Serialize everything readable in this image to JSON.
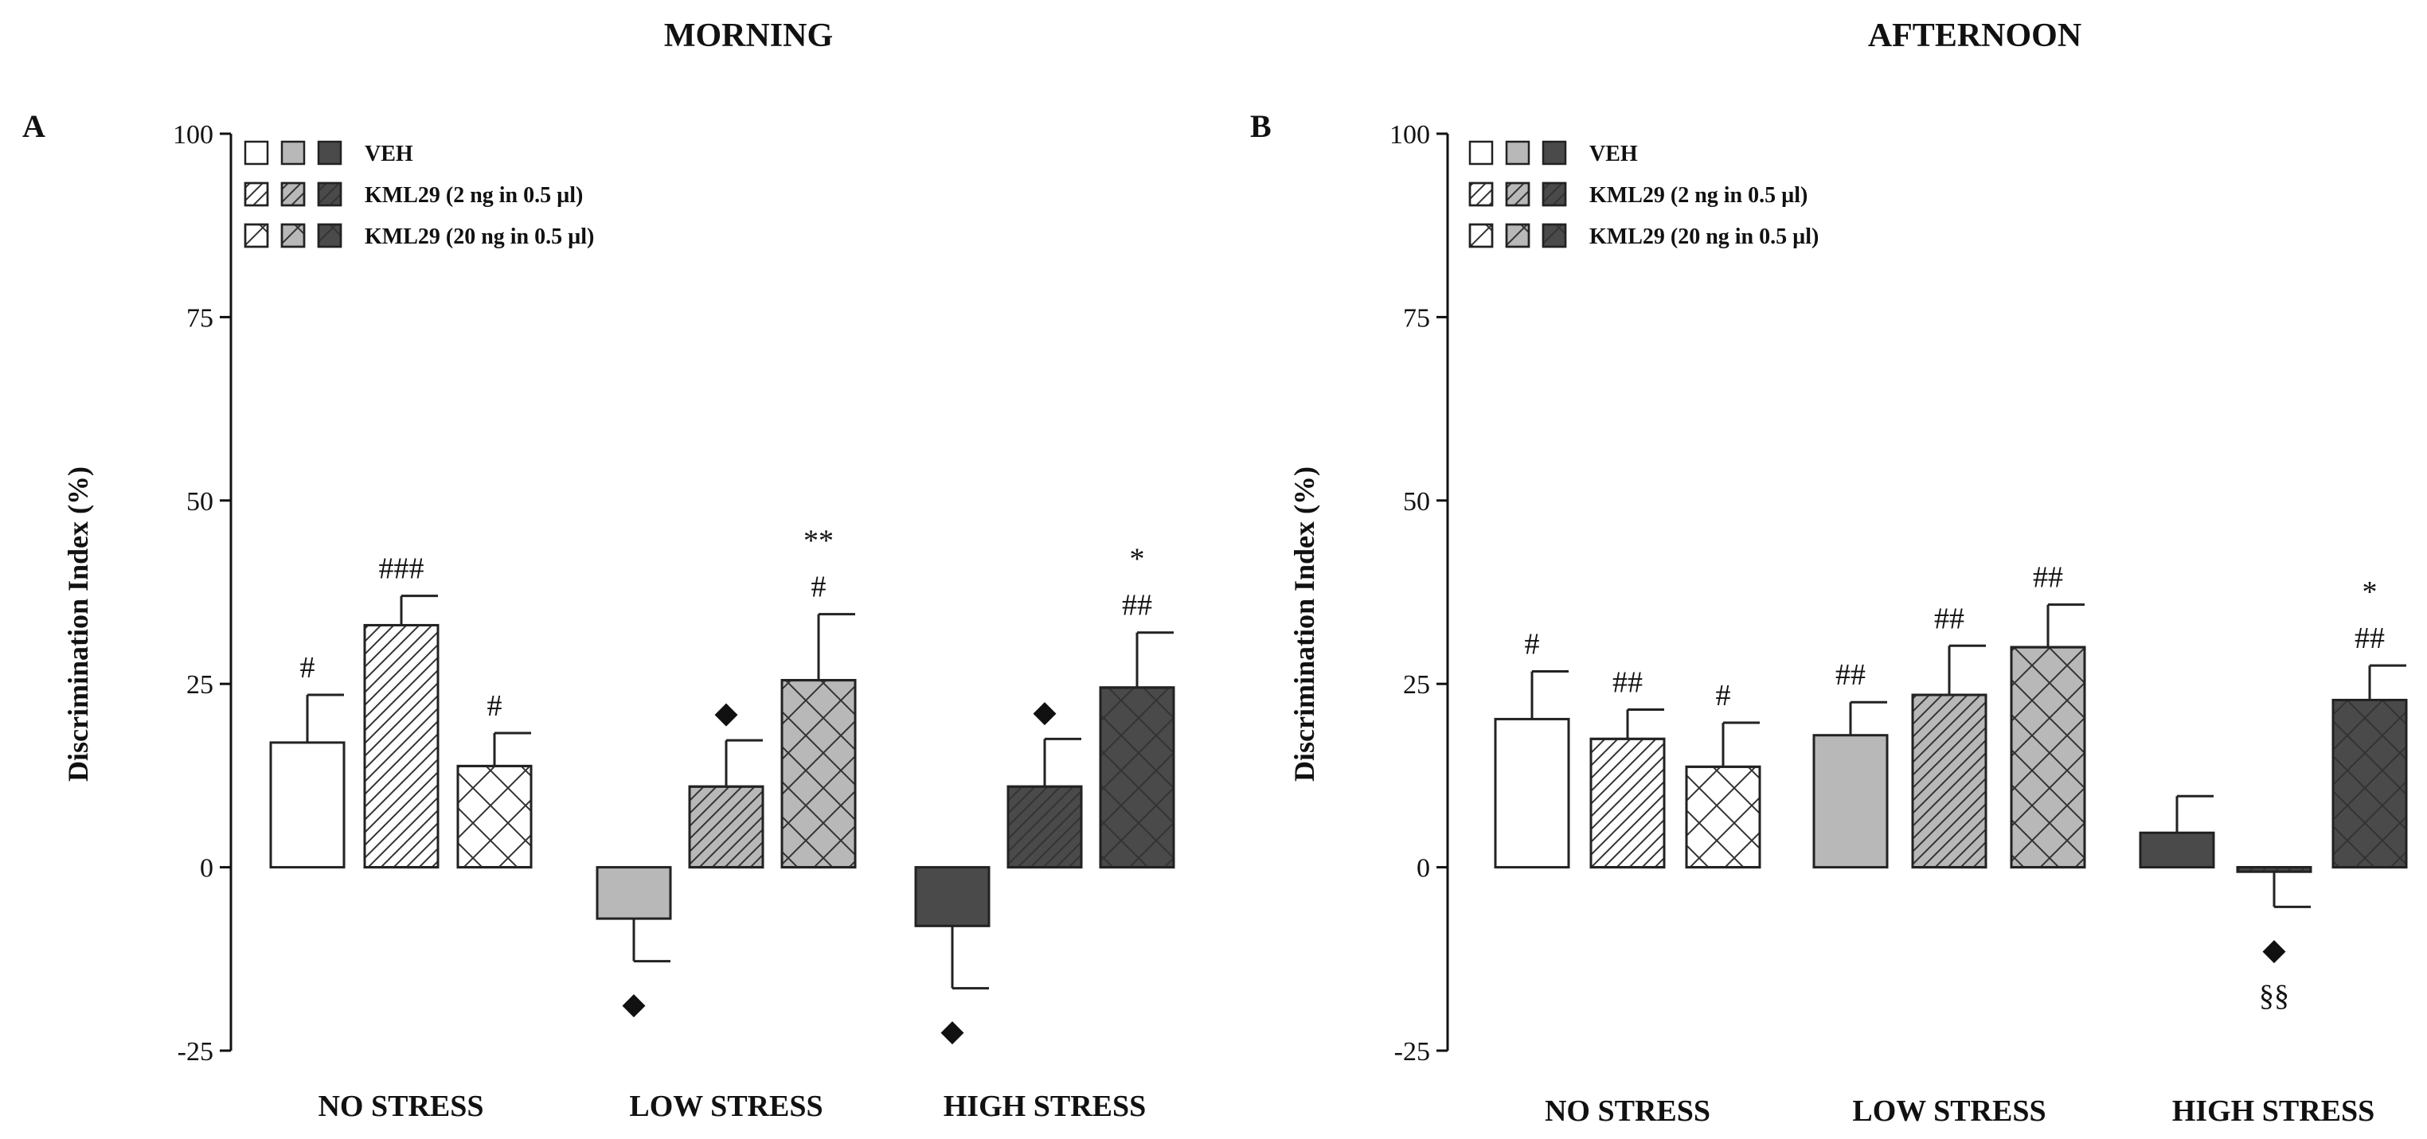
{
  "chart_data": [
    {
      "type": "bar",
      "panel_letter": "A",
      "title": "MORNING",
      "ylabel": "Discrimination Index (%)",
      "ylim": [
        -25,
        100
      ],
      "yticks": [
        -25,
        0,
        25,
        50,
        75,
        100
      ],
      "legend": [
        {
          "label": "VEH",
          "pattern": "solid"
        },
        {
          "label": "KML29 (2 ng in 0.5 µl)",
          "pattern": "hatch"
        },
        {
          "label": "KML29 (20 ng in 0.5 µl)",
          "pattern": "cross"
        }
      ],
      "groups": [
        {
          "name": "NO STRESS",
          "color": "#ffffff",
          "bars": [
            {
              "treatment": "VEH",
              "value": 17,
              "error": 6.5,
              "annotation": "#"
            },
            {
              "treatment": "KML29 (2 ng in 0.5 µl)",
              "value": 33,
              "error": 4,
              "annotation": "###"
            },
            {
              "treatment": "KML29 (20 ng in 0.5 µl)",
              "value": 13.8,
              "error": 4.5,
              "annotation": "#"
            }
          ]
        },
        {
          "name": "LOW STRESS",
          "color": "#b8b8b8",
          "bars": [
            {
              "treatment": "VEH",
              "value": -7,
              "error": 5.8,
              "annotation": "◆"
            },
            {
              "treatment": "KML29 (2 ng in 0.5 µl)",
              "value": 11,
              "error": 6.3,
              "annotation": "◆"
            },
            {
              "treatment": "KML29 (20 ng in 0.5 µl)",
              "value": 25.5,
              "error": 9,
              "annotation": "**\n#"
            }
          ]
        },
        {
          "name": "HIGH STRESS",
          "color": "#4a4a4a",
          "bars": [
            {
              "treatment": "VEH",
              "value": -8,
              "error": 8.5,
              "annotation": "◆"
            },
            {
              "treatment": "KML29 (2 ng in 0.5 µl)",
              "value": 11,
              "error": 6.5,
              "annotation": "◆"
            },
            {
              "treatment": "KML29 (20 ng in 0.5 µl)",
              "value": 24.5,
              "error": 7.5,
              "annotation": "*\n##"
            }
          ]
        }
      ]
    },
    {
      "type": "bar",
      "panel_letter": "B",
      "title": "AFTERNOON",
      "ylabel": "Discrimination Index (%)",
      "ylim": [
        -25,
        100
      ],
      "yticks": [
        -25,
        0,
        25,
        50,
        75,
        100
      ],
      "legend": [
        {
          "label": "VEH",
          "pattern": "solid"
        },
        {
          "label": "KML29 (2 ng in 0.5 µl)",
          "pattern": "hatch"
        },
        {
          "label": "KML29 (20 ng in 0.5 µl)",
          "pattern": "cross"
        }
      ],
      "groups": [
        {
          "name": "NO STRESS",
          "color": "#ffffff",
          "bars": [
            {
              "treatment": "VEH",
              "value": 20.2,
              "error": 6.5,
              "annotation": "#"
            },
            {
              "treatment": "KML29 (2 ng in 0.5 µl)",
              "value": 17.5,
              "error": 4,
              "annotation": "##"
            },
            {
              "treatment": "KML29 (20 ng in 0.5 µl)",
              "value": 13.7,
              "error": 6,
              "annotation": "#"
            }
          ]
        },
        {
          "name": "LOW STRESS",
          "color": "#b8b8b8",
          "bars": [
            {
              "treatment": "VEH",
              "value": 18,
              "error": 4.5,
              "annotation": "##"
            },
            {
              "treatment": "KML29 (2 ng in 0.5 µl)",
              "value": 23.5,
              "error": 6.7,
              "annotation": "##"
            },
            {
              "treatment": "KML29 (20 ng in 0.5 µl)",
              "value": 30,
              "error": 5.8,
              "annotation": "##"
            }
          ]
        },
        {
          "name": "HIGH STRESS",
          "color": "#4a4a4a",
          "bars": [
            {
              "treatment": "VEH",
              "value": 4.7,
              "error": 5,
              "annotation": ""
            },
            {
              "treatment": "KML29 (2 ng in 0.5 µl)",
              "value": -0.6,
              "error": 4.8,
              "annotation": "◆\n§§"
            },
            {
              "treatment": "KML29 (20 ng in 0.5 µl)",
              "value": 22.8,
              "error": 4.7,
              "annotation": "*\n##"
            }
          ]
        }
      ]
    }
  ]
}
